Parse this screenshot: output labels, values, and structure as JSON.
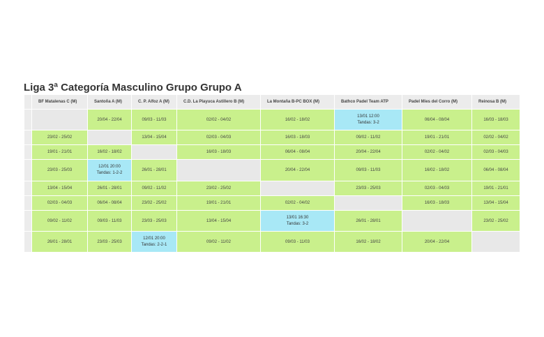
{
  "title": "Liga 3ª Categoría Masculino Grupo Grupo A",
  "columns": [
    "BF Matalenas C (M)",
    "Santoña A (M)",
    "C. P. Alfoz A (M)",
    "C.D. La Playuca Astillero B (M)",
    "La Montaña B-PC BOX (M)",
    "Bathco Padel Team ATP",
    "Padel Mies del Corro (M)",
    "Reinosa B (M)"
  ],
  "rows": [
    {
      "height": 30,
      "cells": [
        {
          "type": "self"
        },
        {
          "type": "date",
          "text": "20/04 - 22/04"
        },
        {
          "type": "date",
          "text": "09/03 - 11/03"
        },
        {
          "type": "date",
          "text": "02/02 - 04/02"
        },
        {
          "type": "date",
          "text": "16/02 - 18/02"
        },
        {
          "type": "result",
          "line1": "13/01 12:00",
          "line2": "Tandas: 3-2"
        },
        {
          "type": "date",
          "text": "06/04 - 08/04"
        },
        {
          "type": "date",
          "text": "16/03 - 18/03"
        }
      ]
    },
    {
      "height": 21,
      "cells": [
        {
          "type": "date",
          "text": "23/02 - 25/02"
        },
        {
          "type": "self"
        },
        {
          "type": "date",
          "text": "13/04 - 15/04"
        },
        {
          "type": "date",
          "text": "02/03 - 04/03"
        },
        {
          "type": "date",
          "text": "16/03 - 18/03"
        },
        {
          "type": "date",
          "text": "09/02 - 11/02"
        },
        {
          "type": "date",
          "text": "19/01 - 21/01"
        },
        {
          "type": "date",
          "text": "02/02 - 04/02"
        }
      ]
    },
    {
      "height": 21,
      "cells": [
        {
          "type": "date",
          "text": "19/01 - 21/01"
        },
        {
          "type": "date",
          "text": "16/02 - 18/02"
        },
        {
          "type": "self"
        },
        {
          "type": "date",
          "text": "16/03 - 18/03"
        },
        {
          "type": "date",
          "text": "06/04 - 08/04"
        },
        {
          "type": "date",
          "text": "20/04 - 22/04"
        },
        {
          "type": "date",
          "text": "02/02 - 04/02"
        },
        {
          "type": "date",
          "text": "02/03 - 04/03"
        }
      ]
    },
    {
      "height": 31,
      "cells": [
        {
          "type": "date",
          "text": "23/03 - 25/03"
        },
        {
          "type": "result",
          "line1": "12/01 20:00",
          "line2": "Tandas: 1-2-2"
        },
        {
          "type": "date",
          "text": "26/01 - 28/01"
        },
        {
          "type": "self"
        },
        {
          "type": "date",
          "text": "20/04 - 22/04"
        },
        {
          "type": "date",
          "text": "09/03 - 11/03"
        },
        {
          "type": "date",
          "text": "16/02 - 18/02"
        },
        {
          "type": "date",
          "text": "06/04 - 08/04"
        }
      ]
    },
    {
      "height": 21,
      "cells": [
        {
          "type": "date",
          "text": "13/04 - 15/04"
        },
        {
          "type": "date",
          "text": "26/01 - 28/01"
        },
        {
          "type": "date",
          "text": "09/02 - 11/02"
        },
        {
          "type": "date",
          "text": "23/02 - 25/02"
        },
        {
          "type": "self"
        },
        {
          "type": "date",
          "text": "23/03 - 25/03"
        },
        {
          "type": "date",
          "text": "02/03 - 04/03"
        },
        {
          "type": "date",
          "text": "19/01 - 21/01"
        }
      ]
    },
    {
      "height": 21,
      "cells": [
        {
          "type": "date",
          "text": "02/03 - 04/03"
        },
        {
          "type": "date",
          "text": "06/04 - 08/04"
        },
        {
          "type": "date",
          "text": "23/02 - 25/02"
        },
        {
          "type": "date",
          "text": "19/01 - 21/01"
        },
        {
          "type": "date",
          "text": "02/02 - 04/02"
        },
        {
          "type": "self"
        },
        {
          "type": "date",
          "text": "16/03 - 18/03"
        },
        {
          "type": "date",
          "text": "13/04 - 15/04"
        }
      ]
    },
    {
      "height": 30,
      "cells": [
        {
          "type": "date",
          "text": "09/02 - 11/02"
        },
        {
          "type": "date",
          "text": "09/03 - 11/03"
        },
        {
          "type": "date",
          "text": "23/03 - 25/03"
        },
        {
          "type": "date",
          "text": "13/04 - 15/04"
        },
        {
          "type": "result",
          "line1": "13/01 16:30",
          "line2": "Tandas: 3-2"
        },
        {
          "type": "date",
          "text": "26/01 - 28/01"
        },
        {
          "type": "self"
        },
        {
          "type": "date",
          "text": "23/02 - 25/02"
        }
      ]
    },
    {
      "height": 30,
      "cells": [
        {
          "type": "date",
          "text": "26/01 - 28/01"
        },
        {
          "type": "date",
          "text": "23/03 - 25/03"
        },
        {
          "type": "result",
          "line1": "12/01 20:00",
          "line2": "Tandas: 2-2-1"
        },
        {
          "type": "date",
          "text": "09/02 - 11/02"
        },
        {
          "type": "date",
          "text": "09/03 - 11/03"
        },
        {
          "type": "date",
          "text": "16/02 - 18/02"
        },
        {
          "type": "date",
          "text": "20/04 - 22/04"
        },
        {
          "type": "self"
        }
      ]
    }
  ],
  "colors": {
    "date": "#c9f08c",
    "result": "#a8e8f6",
    "empty": "#e8e8e8",
    "header": "#ececec"
  }
}
